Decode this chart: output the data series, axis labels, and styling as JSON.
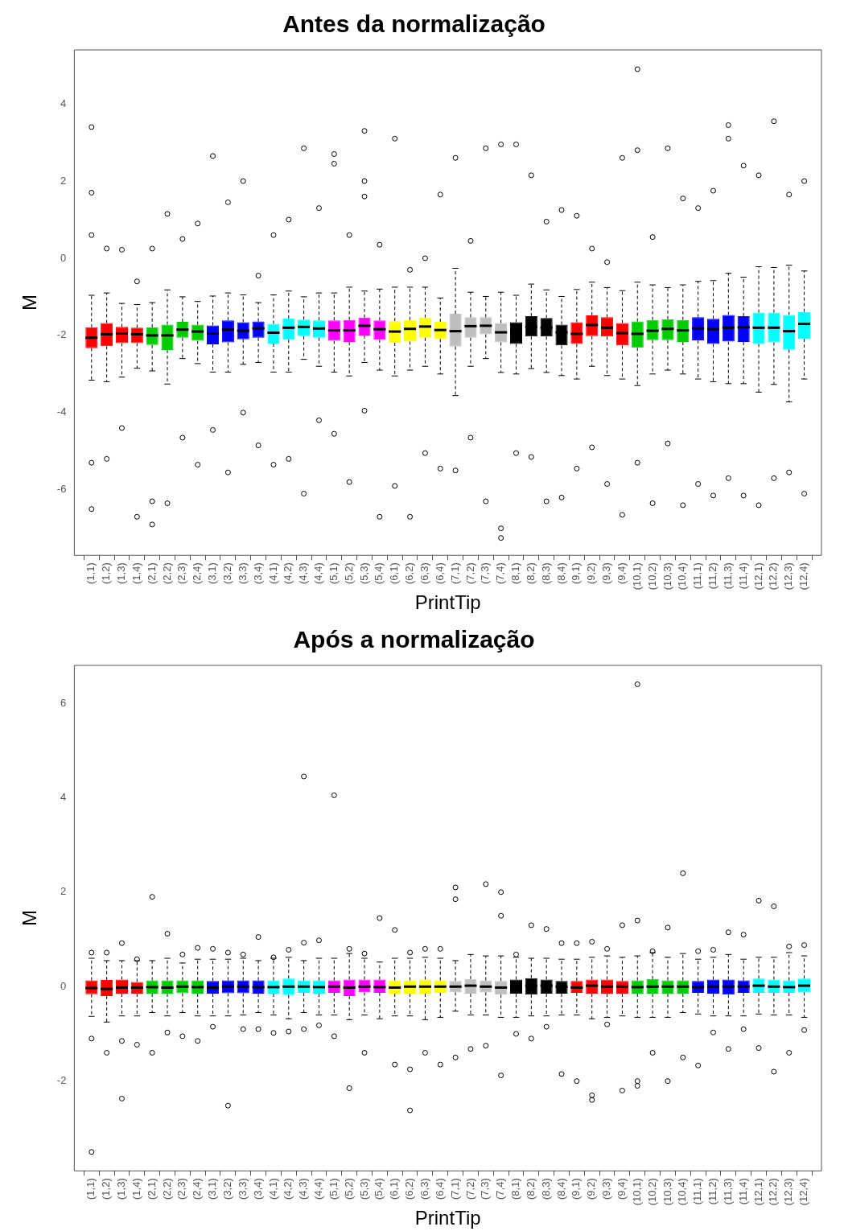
{
  "chart_data": [
    {
      "type": "box",
      "title": "Antes da normalização",
      "xlabel": "PrintTip",
      "ylabel": "M",
      "categories": [
        "(1,1)",
        "(1,2)",
        "(1,3)",
        "(1,4)",
        "(2,1)",
        "(2,2)",
        "(2,3)",
        "(2,4)",
        "(3,1)",
        "(3,2)",
        "(3,3)",
        "(3,4)",
        "(4,1)",
        "(4,2)",
        "(4,3)",
        "(4,4)",
        "(5,1)",
        "(5,2)",
        "(5,3)",
        "(5,4)",
        "(6,1)",
        "(6,2)",
        "(6,3)",
        "(6,4)",
        "(7,1)",
        "(7,2)",
        "(7,3)",
        "(7,4)",
        "(8,1)",
        "(8,2)",
        "(8,3)",
        "(8,4)",
        "(9,1)",
        "(9,2)",
        "(9,3)",
        "(9,4)",
        "(10,1)",
        "(10,2)",
        "(10,3)",
        "(10,4)",
        "(11,1)",
        "(11,2)",
        "(11,3)",
        "(11,4)",
        "(12,1)",
        "(12,2)",
        "(12,3)",
        "(12,4)"
      ],
      "colors": [
        "#ff0000",
        "#ff0000",
        "#ff0000",
        "#ff0000",
        "#00cd00",
        "#00cd00",
        "#00cd00",
        "#00cd00",
        "#0000ff",
        "#0000ff",
        "#0000ff",
        "#0000ff",
        "#00ffff",
        "#00ffff",
        "#00ffff",
        "#00ffff",
        "#ff00ff",
        "#ff00ff",
        "#ff00ff",
        "#ff00ff",
        "#ffff00",
        "#ffff00",
        "#ffff00",
        "#ffff00",
        "#bebebe",
        "#bebebe",
        "#bebebe",
        "#bebebe",
        "#000000",
        "#000000",
        "#000000",
        "#000000",
        "#ff0000",
        "#ff0000",
        "#ff0000",
        "#ff0000",
        "#00cd00",
        "#00cd00",
        "#00cd00",
        "#00cd00",
        "#0000ff",
        "#0000ff",
        "#0000ff",
        "#0000ff",
        "#00ffff",
        "#00ffff",
        "#00ffff",
        "#00ffff"
      ],
      "boxes": [
        {
          "low": -3.16,
          "q1": -2.33,
          "median": -2.06,
          "q3": -1.79,
          "high": -0.96,
          "outliers": [
            3.4,
            1.7,
            0.6,
            -5.3,
            -6.5
          ]
        },
        {
          "low": -3.2,
          "q1": -2.28,
          "median": -1.97,
          "q3": -1.68,
          "high": -0.9,
          "outliers": [
            0.25,
            -5.2
          ]
        },
        {
          "low": -3.08,
          "q1": -2.2,
          "median": -1.95,
          "q3": -1.78,
          "high": -1.17,
          "outliers": [
            0.22,
            -4.4
          ]
        },
        {
          "low": -2.85,
          "q1": -2.2,
          "median": -1.97,
          "q3": -1.8,
          "high": -1.2,
          "outliers": [
            -0.6,
            -6.7
          ]
        },
        {
          "low": -2.92,
          "q1": -2.25,
          "median": -2.0,
          "q3": -1.79,
          "high": -1.15,
          "outliers": [
            0.25,
            -6.3,
            -6.9
          ]
        },
        {
          "low": -3.26,
          "q1": -2.38,
          "median": -2.0,
          "q3": -1.72,
          "high": -0.82,
          "outliers": [
            1.15,
            -6.35
          ]
        },
        {
          "low": -2.6,
          "q1": -2.06,
          "median": -1.85,
          "q3": -1.65,
          "high": -1.0,
          "outliers": [
            0.5,
            -4.65
          ]
        },
        {
          "low": -2.73,
          "q1": -2.14,
          "median": -1.9,
          "q3": -1.72,
          "high": -1.12,
          "outliers": [
            0.9,
            -5.35
          ]
        },
        {
          "low": -2.95,
          "q1": -2.23,
          "median": -1.95,
          "q3": -1.74,
          "high": -0.98,
          "outliers": [
            2.65,
            -4.45
          ]
        },
        {
          "low": -2.95,
          "q1": -2.18,
          "median": -1.85,
          "q3": -1.61,
          "high": -0.9,
          "outliers": [
            1.45,
            -5.55
          ]
        },
        {
          "low": -2.75,
          "q1": -2.1,
          "median": -1.88,
          "q3": -1.66,
          "high": -0.95,
          "outliers": [
            2.0,
            -4.0
          ]
        },
        {
          "low": -2.7,
          "q1": -2.06,
          "median": -1.82,
          "q3": -1.64,
          "high": -1.15,
          "outliers": [
            -0.45,
            -4.85
          ]
        },
        {
          "low": -2.95,
          "q1": -2.21,
          "median": -1.93,
          "q3": -1.7,
          "high": -0.95,
          "outliers": [
            0.6,
            -5.35
          ]
        },
        {
          "low": -2.95,
          "q1": -2.11,
          "median": -1.8,
          "q3": -1.56,
          "high": -0.85,
          "outliers": [
            1.0,
            -5.2
          ]
        },
        {
          "low": -2.62,
          "q1": -2.02,
          "median": -1.78,
          "q3": -1.59,
          "high": -1.0,
          "outliers": [
            2.85,
            -6.1
          ]
        },
        {
          "low": -2.8,
          "q1": -2.06,
          "median": -1.82,
          "q3": -1.61,
          "high": -0.9,
          "outliers": [
            1.3,
            -4.2
          ]
        },
        {
          "low": -2.95,
          "q1": -2.14,
          "median": -1.87,
          "q3": -1.61,
          "high": -0.9,
          "outliers": [
            2.7,
            2.45,
            -4.55
          ]
        },
        {
          "low": -3.05,
          "q1": -2.17,
          "median": -1.87,
          "q3": -1.6,
          "high": -0.75,
          "outliers": [
            0.6,
            -5.8
          ]
        },
        {
          "low": -2.7,
          "q1": -2.0,
          "median": -1.75,
          "q3": -1.54,
          "high": -0.85,
          "outliers": [
            3.3,
            2.0,
            1.6,
            -3.95
          ]
        },
        {
          "low": -2.9,
          "q1": -2.11,
          "median": -1.84,
          "q3": -1.61,
          "high": -0.8,
          "outliers": [
            0.35,
            -6.7
          ]
        },
        {
          "low": -3.05,
          "q1": -2.19,
          "median": -1.9,
          "q3": -1.63,
          "high": -0.75,
          "outliers": [
            3.1,
            -5.9
          ]
        },
        {
          "low": -2.9,
          "q1": -2.16,
          "median": -1.83,
          "q3": -1.6,
          "high": -0.75,
          "outliers": [
            -0.3,
            -6.7
          ]
        },
        {
          "low": -2.8,
          "q1": -2.06,
          "median": -1.77,
          "q3": -1.54,
          "high": -0.75,
          "outliers": [
            0.0,
            -5.05
          ]
        },
        {
          "low": -3.0,
          "q1": -2.09,
          "median": -1.86,
          "q3": -1.65,
          "high": -1.03,
          "outliers": [
            1.65,
            -5.45
          ]
        },
        {
          "low": -3.56,
          "q1": -2.29,
          "median": -1.89,
          "q3": -1.44,
          "high": -0.26,
          "outliers": [
            2.6,
            -5.5
          ]
        },
        {
          "low": -2.8,
          "q1": -2.06,
          "median": -1.76,
          "q3": -1.53,
          "high": -0.88,
          "outliers": [
            0.45,
            -4.65
          ]
        },
        {
          "low": -2.6,
          "q1": -1.97,
          "median": -1.75,
          "q3": -1.53,
          "high": -0.99,
          "outliers": [
            2.85,
            -6.3
          ]
        },
        {
          "low": -2.96,
          "q1": -2.18,
          "median": -1.92,
          "q3": -1.68,
          "high": -0.88,
          "outliers": [
            2.95,
            -7.0,
            -7.25
          ]
        },
        {
          "low": -3.0,
          "q1": -2.22,
          "median": -1.92,
          "q3": -1.66,
          "high": -0.96,
          "outliers": [
            2.95,
            -5.05
          ]
        },
        {
          "low": -2.86,
          "q1": -2.03,
          "median": -1.78,
          "q3": -1.5,
          "high": -0.67,
          "outliers": [
            2.15,
            -5.15
          ]
        },
        {
          "low": -2.96,
          "q1": -2.03,
          "median": -1.8,
          "q3": -1.55,
          "high": -0.82,
          "outliers": [
            0.95,
            -6.3
          ]
        },
        {
          "low": -3.04,
          "q1": -2.26,
          "median": -1.92,
          "q3": -1.72,
          "high": -0.99,
          "outliers": [
            1.25,
            -6.2
          ]
        },
        {
          "low": -3.13,
          "q1": -2.22,
          "median": -1.96,
          "q3": -1.66,
          "high": -0.81,
          "outliers": [
            1.1,
            -5.45
          ]
        },
        {
          "low": -2.8,
          "q1": -2.02,
          "median": -1.73,
          "q3": -1.48,
          "high": -0.62,
          "outliers": [
            0.25,
            -4.9
          ]
        },
        {
          "low": -3.04,
          "q1": -2.03,
          "median": -1.8,
          "q3": -1.53,
          "high": -0.76,
          "outliers": [
            -0.1,
            -5.85
          ]
        },
        {
          "low": -3.13,
          "q1": -2.26,
          "median": -1.94,
          "q3": -1.68,
          "high": -0.84,
          "outliers": [
            2.6,
            -6.65
          ]
        },
        {
          "low": -3.3,
          "q1": -2.32,
          "median": -1.96,
          "q3": -1.64,
          "high": -0.62,
          "outliers": [
            4.9,
            2.8,
            -5.3
          ]
        },
        {
          "low": -3.0,
          "q1": -2.12,
          "median": -1.88,
          "q3": -1.6,
          "high": -0.69,
          "outliers": [
            0.55,
            -6.35
          ]
        },
        {
          "low": -2.9,
          "q1": -2.12,
          "median": -1.83,
          "q3": -1.58,
          "high": -0.76,
          "outliers": [
            2.85,
            -4.8
          ]
        },
        {
          "low": -3.0,
          "q1": -2.17,
          "median": -1.87,
          "q3": -1.6,
          "high": -0.69,
          "outliers": [
            1.55,
            -6.4
          ]
        },
        {
          "low": -3.13,
          "q1": -2.13,
          "median": -1.82,
          "q3": -1.53,
          "high": -0.6,
          "outliers": [
            1.3,
            -5.85
          ]
        },
        {
          "low": -3.2,
          "q1": -2.22,
          "median": -1.84,
          "q3": -1.57,
          "high": -0.58,
          "outliers": [
            1.75,
            -6.15
          ]
        },
        {
          "low": -3.25,
          "q1": -2.16,
          "median": -1.8,
          "q3": -1.47,
          "high": -0.39,
          "outliers": [
            3.45,
            3.1,
            -5.7
          ]
        },
        {
          "low": -3.25,
          "q1": -2.17,
          "median": -1.79,
          "q3": -1.5,
          "high": -0.49,
          "outliers": [
            2.4,
            -6.15
          ]
        },
        {
          "low": -3.47,
          "q1": -2.22,
          "median": -1.8,
          "q3": -1.41,
          "high": -0.22,
          "outliers": [
            2.15,
            -6.4
          ]
        },
        {
          "low": -3.27,
          "q1": -2.18,
          "median": -1.8,
          "q3": -1.41,
          "high": -0.24,
          "outliers": [
            3.55,
            -5.7
          ]
        },
        {
          "low": -3.72,
          "q1": -2.37,
          "median": -1.89,
          "q3": -1.47,
          "high": -0.18,
          "outliers": [
            1.65,
            -5.55
          ]
        },
        {
          "low": -3.13,
          "q1": -2.09,
          "median": -1.7,
          "q3": -1.39,
          "high": -0.33,
          "outliers": [
            2.0,
            -6.1
          ]
        }
      ],
      "ylim": [
        -7.7,
        5.4
      ],
      "yticks": [
        -6,
        -4,
        -2,
        0,
        2,
        4
      ]
    },
    {
      "type": "box",
      "title": "Após a normalização",
      "xlabel": "PrintTip",
      "ylabel": "M",
      "categories": [
        "(1,1)",
        "(1,2)",
        "(1,3)",
        "(1,4)",
        "(2,1)",
        "(2,2)",
        "(2,3)",
        "(2,4)",
        "(3,1)",
        "(3,2)",
        "(3,3)",
        "(3,4)",
        "(4,1)",
        "(4,2)",
        "(4,3)",
        "(4,4)",
        "(5,1)",
        "(5,2)",
        "(5,3)",
        "(5,4)",
        "(6,1)",
        "(6,2)",
        "(6,3)",
        "(6,4)",
        "(7,1)",
        "(7,2)",
        "(7,3)",
        "(7,4)",
        "(8,1)",
        "(8,2)",
        "(8,3)",
        "(8,4)",
        "(9,1)",
        "(9,2)",
        "(9,3)",
        "(9,4)",
        "(10,1)",
        "(10,2)",
        "(10,3)",
        "(10,4)",
        "(11,1)",
        "(11,2)",
        "(11,3)",
        "(11,4)",
        "(12,1)",
        "(12,2)",
        "(12,3)",
        "(12,4)"
      ],
      "colors": [
        "#ff0000",
        "#ff0000",
        "#ff0000",
        "#ff0000",
        "#00cd00",
        "#00cd00",
        "#00cd00",
        "#00cd00",
        "#0000ff",
        "#0000ff",
        "#0000ff",
        "#0000ff",
        "#00ffff",
        "#00ffff",
        "#00ffff",
        "#00ffff",
        "#ff00ff",
        "#ff00ff",
        "#ff00ff",
        "#ff00ff",
        "#ffff00",
        "#ffff00",
        "#ffff00",
        "#ffff00",
        "#bebebe",
        "#bebebe",
        "#bebebe",
        "#bebebe",
        "#000000",
        "#000000",
        "#000000",
        "#000000",
        "#ff0000",
        "#ff0000",
        "#ff0000",
        "#ff0000",
        "#00cd00",
        "#00cd00",
        "#00cd00",
        "#00cd00",
        "#0000ff",
        "#0000ff",
        "#0000ff",
        "#0000ff",
        "#00ffff",
        "#00ffff",
        "#00ffff",
        "#00ffff"
      ],
      "boxes": [
        {
          "low": -0.63,
          "q1": -0.16,
          "median": -0.03,
          "q3": 0.13,
          "high": 0.6,
          "outliers": [
            0.72,
            -1.1,
            -3.5
          ]
        },
        {
          "low": -0.75,
          "q1": -0.2,
          "median": -0.05,
          "q3": 0.14,
          "high": 0.55,
          "outliers": [
            0.72,
            -1.4
          ]
        },
        {
          "low": -0.62,
          "q1": -0.15,
          "median": -0.02,
          "q3": 0.15,
          "high": 0.55,
          "outliers": [
            0.92,
            -1.15,
            -2.37
          ]
        },
        {
          "low": -0.62,
          "q1": -0.15,
          "median": -0.02,
          "q3": 0.1,
          "high": 0.55,
          "outliers": [
            0.58,
            -1.23
          ]
        },
        {
          "low": -0.55,
          "q1": -0.15,
          "median": -0.01,
          "q3": 0.13,
          "high": 0.55,
          "outliers": [
            1.9,
            -1.4
          ]
        },
        {
          "low": -0.62,
          "q1": -0.15,
          "median": -0.02,
          "q3": 0.13,
          "high": 0.6,
          "outliers": [
            1.12,
            -0.97
          ]
        },
        {
          "low": -0.55,
          "q1": -0.14,
          "median": 0.0,
          "q3": 0.13,
          "high": 0.5,
          "outliers": [
            0.68,
            -1.05
          ]
        },
        {
          "low": -0.62,
          "q1": -0.15,
          "median": -0.01,
          "q3": 0.13,
          "high": 0.58,
          "outliers": [
            0.82,
            -1.15
          ]
        },
        {
          "low": -0.62,
          "q1": -0.15,
          "median": -0.02,
          "q3": 0.12,
          "high": 0.58,
          "outliers": [
            0.8,
            -0.85
          ]
        },
        {
          "low": -0.62,
          "q1": -0.14,
          "median": 0.0,
          "q3": 0.13,
          "high": 0.58,
          "outliers": [
            0.72,
            -2.52
          ]
        },
        {
          "low": -0.6,
          "q1": -0.14,
          "median": 0.0,
          "q3": 0.13,
          "high": 0.6,
          "outliers": [
            0.68,
            -0.9
          ]
        },
        {
          "low": -0.55,
          "q1": -0.15,
          "median": -0.01,
          "q3": 0.13,
          "high": 0.55,
          "outliers": [
            1.05,
            -0.9
          ]
        },
        {
          "low": -0.6,
          "q1": -0.15,
          "median": -0.01,
          "q3": 0.13,
          "high": 0.6,
          "outliers": [
            0.62,
            -0.98
          ]
        },
        {
          "low": -0.68,
          "q1": -0.18,
          "median": 0.0,
          "q3": 0.17,
          "high": 0.62,
          "outliers": [
            0.78,
            -0.95
          ]
        },
        {
          "low": -0.55,
          "q1": -0.13,
          "median": 0.0,
          "q3": 0.13,
          "high": 0.55,
          "outliers": [
            4.45,
            0.93,
            -0.9
          ]
        },
        {
          "low": -0.6,
          "q1": -0.15,
          "median": -0.01,
          "q3": 0.13,
          "high": 0.6,
          "outliers": [
            0.98,
            -0.82
          ]
        },
        {
          "low": -0.6,
          "q1": -0.13,
          "median": 0.0,
          "q3": 0.13,
          "high": 0.6,
          "outliers": [
            4.05,
            -1.05
          ]
        },
        {
          "low": -0.7,
          "q1": -0.2,
          "median": -0.02,
          "q3": 0.15,
          "high": 0.7,
          "outliers": [
            0.8,
            -2.15
          ]
        },
        {
          "low": -0.6,
          "q1": -0.12,
          "median": 0.0,
          "q3": 0.15,
          "high": 0.6,
          "outliers": [
            0.7,
            -1.4
          ]
        },
        {
          "low": -0.68,
          "q1": -0.13,
          "median": -0.01,
          "q3": 0.15,
          "high": 0.52,
          "outliers": [
            1.45
          ]
        },
        {
          "low": -0.62,
          "q1": -0.15,
          "median": -0.02,
          "q3": 0.13,
          "high": 0.6,
          "outliers": [
            1.2,
            -1.65
          ]
        },
        {
          "low": -0.62,
          "q1": -0.15,
          "median": 0.0,
          "q3": 0.13,
          "high": 0.6,
          "outliers": [
            0.72,
            -1.75,
            -2.62
          ]
        },
        {
          "low": -0.7,
          "q1": -0.15,
          "median": 0.0,
          "q3": 0.15,
          "high": 0.62,
          "outliers": [
            0.8,
            -1.4
          ]
        },
        {
          "low": -0.65,
          "q1": -0.13,
          "median": 0.0,
          "q3": 0.13,
          "high": 0.6,
          "outliers": [
            0.8,
            -1.65
          ]
        },
        {
          "low": -0.52,
          "q1": -0.12,
          "median": 0.0,
          "q3": 0.12,
          "high": 0.55,
          "outliers": [
            2.1,
            1.85,
            -1.5
          ]
        },
        {
          "low": -0.6,
          "q1": -0.15,
          "median": 0.02,
          "q3": 0.16,
          "high": 0.68,
          "outliers": [
            -1.32
          ]
        },
        {
          "low": -0.6,
          "q1": -0.12,
          "median": 0.0,
          "q3": 0.13,
          "high": 0.65,
          "outliers": [
            2.17,
            -1.25
          ]
        },
        {
          "low": -0.65,
          "q1": -0.17,
          "median": -0.02,
          "q3": 0.12,
          "high": 0.65,
          "outliers": [
            2.0,
            1.5,
            -1.88
          ]
        },
        {
          "low": -0.65,
          "q1": -0.15,
          "median": 0.0,
          "q3": 0.15,
          "high": 0.62,
          "outliers": [
            0.68,
            -1.0
          ]
        },
        {
          "low": -0.62,
          "q1": -0.17,
          "median": 0.02,
          "q3": 0.18,
          "high": 0.6,
          "outliers": [
            1.3,
            -1.1
          ]
        },
        {
          "low": -0.62,
          "q1": -0.15,
          "median": 0.02,
          "q3": 0.15,
          "high": 0.6,
          "outliers": [
            1.22,
            -0.85
          ]
        },
        {
          "low": -0.6,
          "q1": -0.15,
          "median": 0.0,
          "q3": 0.12,
          "high": 0.58,
          "outliers": [
            0.92,
            -1.85
          ]
        },
        {
          "low": -0.6,
          "q1": -0.13,
          "median": -0.02,
          "q3": 0.12,
          "high": 0.58,
          "outliers": [
            0.92,
            -2.0
          ]
        },
        {
          "low": -0.68,
          "q1": -0.15,
          "median": 0.02,
          "q3": 0.15,
          "high": 0.62,
          "outliers": [
            0.95,
            -2.3,
            -2.4
          ]
        },
        {
          "low": -0.65,
          "q1": -0.15,
          "median": 0.0,
          "q3": 0.15,
          "high": 0.65,
          "outliers": [
            0.8,
            -0.8
          ]
        },
        {
          "low": -0.62,
          "q1": -0.15,
          "median": 0.0,
          "q3": 0.12,
          "high": 0.62,
          "outliers": [
            1.3,
            -2.2
          ]
        },
        {
          "low": -0.65,
          "q1": -0.15,
          "median": -0.01,
          "q3": 0.13,
          "high": 0.65,
          "outliers": [
            6.4,
            1.4,
            -2.0,
            -2.1
          ]
        },
        {
          "low": -0.65,
          "q1": -0.15,
          "median": 0.0,
          "q3": 0.16,
          "high": 0.72,
          "outliers": [
            0.75,
            -1.4
          ]
        },
        {
          "low": -0.65,
          "q1": -0.15,
          "median": 0.0,
          "q3": 0.13,
          "high": 0.62,
          "outliers": [
            1.25,
            -2.0
          ]
        },
        {
          "low": -0.55,
          "q1": -0.15,
          "median": 0.0,
          "q3": 0.13,
          "high": 0.7,
          "outliers": [
            2.4,
            -1.5
          ]
        },
        {
          "low": -0.58,
          "q1": -0.13,
          "median": -0.01,
          "q3": 0.12,
          "high": 0.58,
          "outliers": [
            0.75,
            -1.67
          ]
        },
        {
          "low": -0.62,
          "q1": -0.15,
          "median": 0.0,
          "q3": 0.15,
          "high": 0.62,
          "outliers": [
            0.78,
            -0.97
          ]
        },
        {
          "low": -0.62,
          "q1": -0.17,
          "median": 0.0,
          "q3": 0.15,
          "high": 0.68,
          "outliers": [
            1.15,
            -1.32
          ]
        },
        {
          "low": -0.62,
          "q1": -0.13,
          "median": 0.0,
          "q3": 0.13,
          "high": 0.58,
          "outliers": [
            1.1,
            -0.9
          ]
        },
        {
          "low": -0.58,
          "q1": -0.13,
          "median": 0.02,
          "q3": 0.17,
          "high": 0.62,
          "outliers": [
            1.82,
            -1.3
          ]
        },
        {
          "low": -0.6,
          "q1": -0.13,
          "median": 0.0,
          "q3": 0.15,
          "high": 0.62,
          "outliers": [
            1.7,
            -1.8
          ]
        },
        {
          "low": -0.6,
          "q1": -0.13,
          "median": -0.01,
          "q3": 0.13,
          "high": 0.72,
          "outliers": [
            0.85,
            -1.4
          ]
        },
        {
          "low": -0.65,
          "q1": -0.12,
          "median": 0.02,
          "q3": 0.17,
          "high": 0.65,
          "outliers": [
            0.88,
            -0.92
          ]
        }
      ],
      "ylim": [
        -3.9,
        6.8
      ],
      "yticks": [
        -2,
        0,
        2,
        4,
        6
      ]
    }
  ]
}
